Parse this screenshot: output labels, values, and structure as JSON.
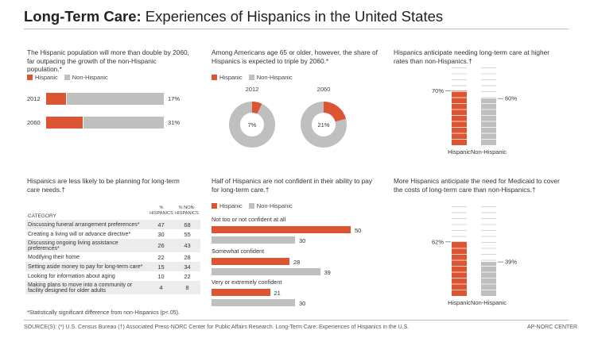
{
  "title": {
    "bold": "Long-Term Care:",
    "rest": " Experiences of Hispanics in the United States"
  },
  "legend": {
    "hispanic": "Hispanic",
    "non_hispanic": "Non-Hispanic"
  },
  "colors": {
    "hispanic": "#dc5431",
    "non_hispanic": "#bfbfbf"
  },
  "panel1": {
    "caption": "The Hispanic population will more than double by 2060, far outpacing the growth of the non-Hispanic population.*"
  },
  "panel2": {
    "caption": "Among Americans age 65 or older, however, the share of Hispanics is expected to triple by 2060.*"
  },
  "panel3": {
    "caption": "Hispanics anticipate needing long-term care at higher rates than non-Hispanics.†"
  },
  "panel4": {
    "caption": "Hispanics are less likely to be planning for long-term care needs.†",
    "col_category": "CATEGORY",
    "col_hispanic": "% HISPANICS",
    "col_non_hispanic": "% NON-HISPANICS",
    "footnote": "*Statistically significant difference from non-Hispanics (p<.05)."
  },
  "panel5": {
    "caption": "Half of Hispanics are not confident in their ability to pay for long-term care.†"
  },
  "panel6": {
    "caption": "More Hispanics anticipate the need for Medicaid to cover the costs of long-term care than non-Hispanics.†"
  },
  "chart_data": [
    {
      "type": "bar",
      "orientation": "horizontal",
      "stacked": true,
      "categories": [
        "2012",
        "2060"
      ],
      "series": [
        {
          "name": "Hispanic",
          "values": [
            17,
            31
          ]
        },
        {
          "name": "Non-Hispanic",
          "values": [
            83,
            69
          ]
        }
      ],
      "labels": [
        "17%",
        "31%"
      ]
    },
    {
      "type": "pie",
      "donut": true,
      "charts": [
        {
          "label": "2012",
          "hispanic": 7,
          "non_hispanic": 93,
          "center_label": "7%"
        },
        {
          "label": "2060",
          "hispanic": 21,
          "non_hispanic": 79,
          "center_label": "21%"
        }
      ]
    },
    {
      "type": "bar",
      "categories": [
        "Hispanic",
        "Non-Hispanic"
      ],
      "values": [
        70,
        60
      ],
      "labels": [
        "70%",
        "60%"
      ],
      "ylim": [
        0,
        100
      ]
    },
    {
      "type": "table",
      "columns": [
        "CATEGORY",
        "% HISPANICS",
        "% NON-HISPANICS"
      ],
      "rows": [
        {
          "category": "Discussing funeral arrangement preferences*",
          "hispanic": 47,
          "non_hispanic": 68
        },
        {
          "category": "Creating a living will or advance directive*",
          "hispanic": 30,
          "non_hispanic": 55
        },
        {
          "category": "Discussing ongoing living assistance preferences*",
          "hispanic": 26,
          "non_hispanic": 43
        },
        {
          "category": "Modifying their home",
          "hispanic": 22,
          "non_hispanic": 28
        },
        {
          "category": "Setting aside money to pay for long-term care*",
          "hispanic": 15,
          "non_hispanic": 34
        },
        {
          "category": "Looking for information about aging",
          "hispanic": 10,
          "non_hispanic": 22
        },
        {
          "category": "Making plans to move into a community or facility designed for older adults",
          "hispanic": 4,
          "non_hispanic": 8
        }
      ]
    },
    {
      "type": "bar",
      "orientation": "horizontal",
      "categories": [
        "Not too or not confident at all",
        "Somewhat confident",
        "Very or extremely confident"
      ],
      "series": [
        {
          "name": "Hispanic",
          "values": [
            50,
            28,
            21
          ]
        },
        {
          "name": "Non-Hispanic",
          "values": [
            30,
            39,
            30
          ]
        }
      ]
    },
    {
      "type": "bar",
      "categories": [
        "Hispanic",
        "Non-Hispanic"
      ],
      "values": [
        62,
        39
      ],
      "labels": [
        "62%",
        "39%"
      ],
      "ylim": [
        0,
        100
      ]
    }
  ],
  "footer": {
    "sources": "SOURCE(S): (*) U.S. Census Bureau   (†) Associated Press-NORC Center for Public Affairs Research. Long-Term Care: Experiences of Hispanics in the U.S.",
    "credit": "AP-NORC CENTER"
  }
}
